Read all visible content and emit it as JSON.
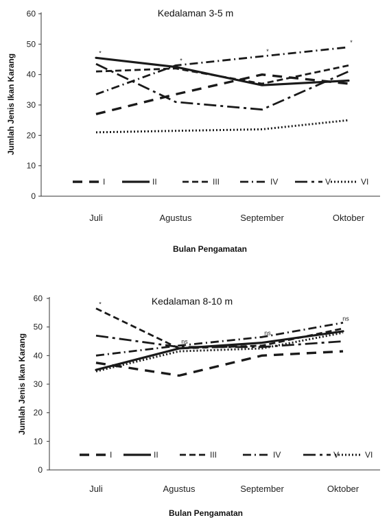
{
  "chart_data": [
    {
      "type": "line",
      "title": "Kedalaman 3-5 m",
      "xlabel": "Bulan Pengamatan",
      "ylabel": "Jumlah Jenis Ikan Karang",
      "categories": [
        "Juli",
        "Agustus",
        "September",
        "Oktober"
      ],
      "ylim": [
        0,
        60
      ],
      "yticks": [
        0,
        10,
        20,
        30,
        40,
        50,
        60
      ],
      "grid": false,
      "legend": "bottom-inside",
      "series": [
        {
          "name": "I",
          "values": [
            27,
            33.5,
            40,
            37
          ]
        },
        {
          "name": "II",
          "values": [
            45.5,
            42.5,
            36.5,
            38
          ]
        },
        {
          "name": "III",
          "values": [
            41,
            42,
            37,
            43
          ]
        },
        {
          "name": "IV",
          "values": [
            33.5,
            43,
            46,
            49
          ]
        },
        {
          "name": "V",
          "values": [
            43.5,
            31,
            28.5,
            41
          ]
        },
        {
          "name": "VI",
          "values": [
            21,
            21.5,
            22,
            25
          ]
        }
      ],
      "annotations": [
        "*",
        "*",
        "*",
        "*"
      ]
    },
    {
      "type": "line",
      "title": "Kedalaman 8-10 m",
      "xlabel": "Bulan Pengamatan",
      "ylabel": "Jumlah Jenis Ikan Karang",
      "categories": [
        "Juli",
        "Agustus",
        "September",
        "Oktober"
      ],
      "ylim": [
        0,
        60
      ],
      "yticks": [
        0,
        10,
        20,
        30,
        40,
        50,
        60
      ],
      "grid": false,
      "legend": "bottom-inside",
      "series": [
        {
          "name": "I",
          "values": [
            37.5,
            33,
            40,
            41.5
          ]
        },
        {
          "name": "II",
          "values": [
            35,
            42.5,
            44.5,
            48.5
          ]
        },
        {
          "name": "III",
          "values": [
            56.5,
            42.5,
            43.5,
            49.5
          ]
        },
        {
          "name": "IV",
          "values": [
            40,
            43.5,
            46.5,
            51.5
          ]
        },
        {
          "name": "V",
          "values": [
            47,
            43,
            43,
            45
          ]
        },
        {
          "name": "VI",
          "values": [
            34.5,
            41.5,
            42.5,
            48
          ]
        }
      ],
      "annotations": [
        "*",
        "ns",
        "ns",
        "ns"
      ]
    }
  ],
  "style": {
    "line_color": "#1a1a1a",
    "background": "#ffffff"
  }
}
